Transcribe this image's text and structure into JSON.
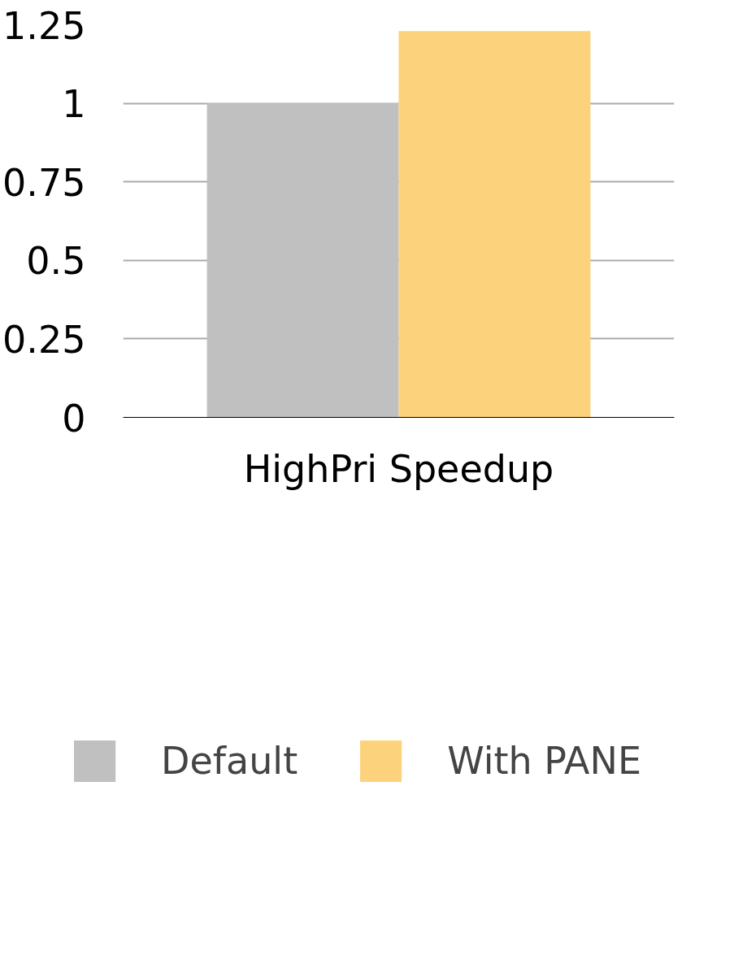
{
  "chart_data": {
    "type": "bar",
    "categories": [
      "HighPri Speedup"
    ],
    "series": [
      {
        "name": "Default",
        "color": "#c0c0c0",
        "values": [
          1
        ]
      },
      {
        "name": "With PANE",
        "color": "#fdd27c",
        "values": [
          1.23
        ]
      }
    ],
    "ylim": [
      0,
      1.25
    ],
    "yticks": [
      0,
      0.25,
      0.5,
      0.75,
      1,
      1.25
    ],
    "grid": "y",
    "legend": "bottom"
  }
}
